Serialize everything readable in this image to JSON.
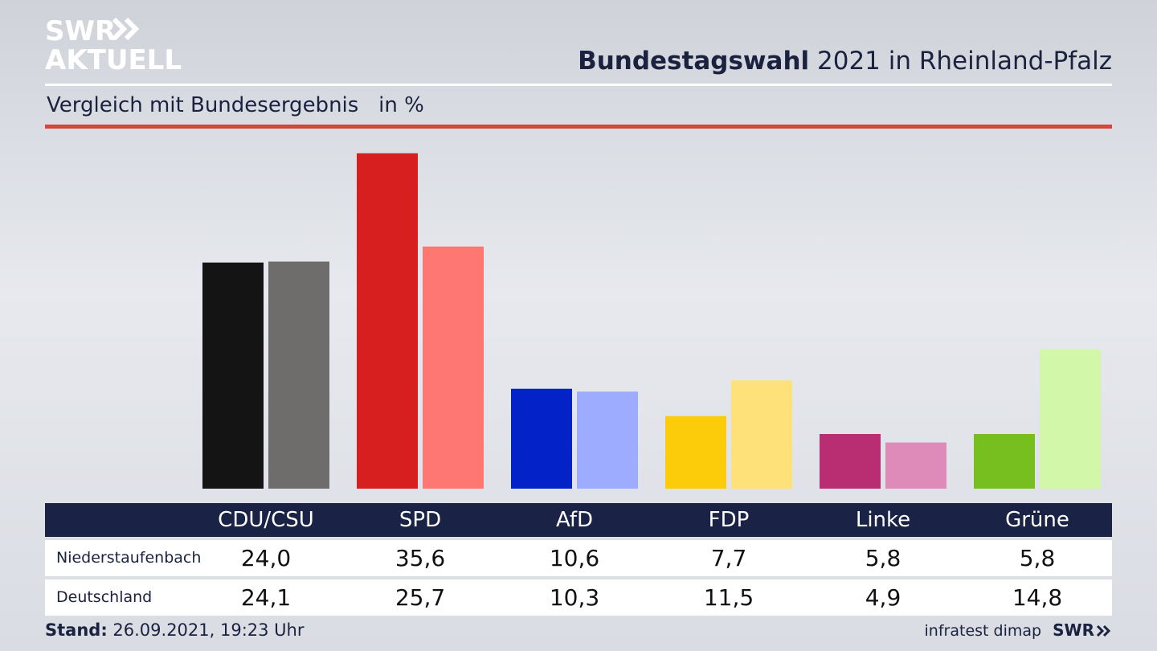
{
  "brand": {
    "logo_line1": "SWR",
    "logo_line2": "AKTUELL",
    "footer_brand": "SWR"
  },
  "header": {
    "title_bold": "Bundestagswahl",
    "title_rest": " 2021 in Rheinland-Pfalz",
    "subtitle": "Vergleich mit Bundesergebnis   in %"
  },
  "colors": {
    "header_bar": "#1a2346",
    "accent_red_rule": "#d2473d"
  },
  "chart_data": {
    "type": "bar",
    "categories": [
      "CDU/CSU",
      "SPD",
      "AfD",
      "FDP",
      "Linke",
      "Grüne"
    ],
    "series": [
      {
        "name": "Niederstaufenbach",
        "values": [
          24.0,
          35.6,
          10.6,
          7.7,
          5.8,
          5.8
        ],
        "labels": [
          "24,0",
          "35,6",
          "10,6",
          "7,7",
          "5,8",
          "5,8"
        ],
        "colors": [
          "#141414",
          "#d71f1f",
          "#0322c8",
          "#fccb0a",
          "#b92e73",
          "#77bf1f"
        ]
      },
      {
        "name": "Deutschland",
        "values": [
          24.1,
          25.7,
          10.3,
          11.5,
          4.9,
          14.8
        ],
        "labels": [
          "24,1",
          "25,7",
          "10,3",
          "11,5",
          "4,9",
          "14,8"
        ],
        "colors": [
          "#6f6d6b",
          "#ff7772",
          "#9eacff",
          "#ffe17a",
          "#df8bba",
          "#d3f7a8"
        ]
      }
    ],
    "ylim": [
      0,
      36
    ],
    "grid": false,
    "legend": "table below chart"
  },
  "footer": {
    "stand_label": "Stand:",
    "stand_value": " 26.09.2021, 19:23 Uhr",
    "source": "infratest dimap"
  }
}
